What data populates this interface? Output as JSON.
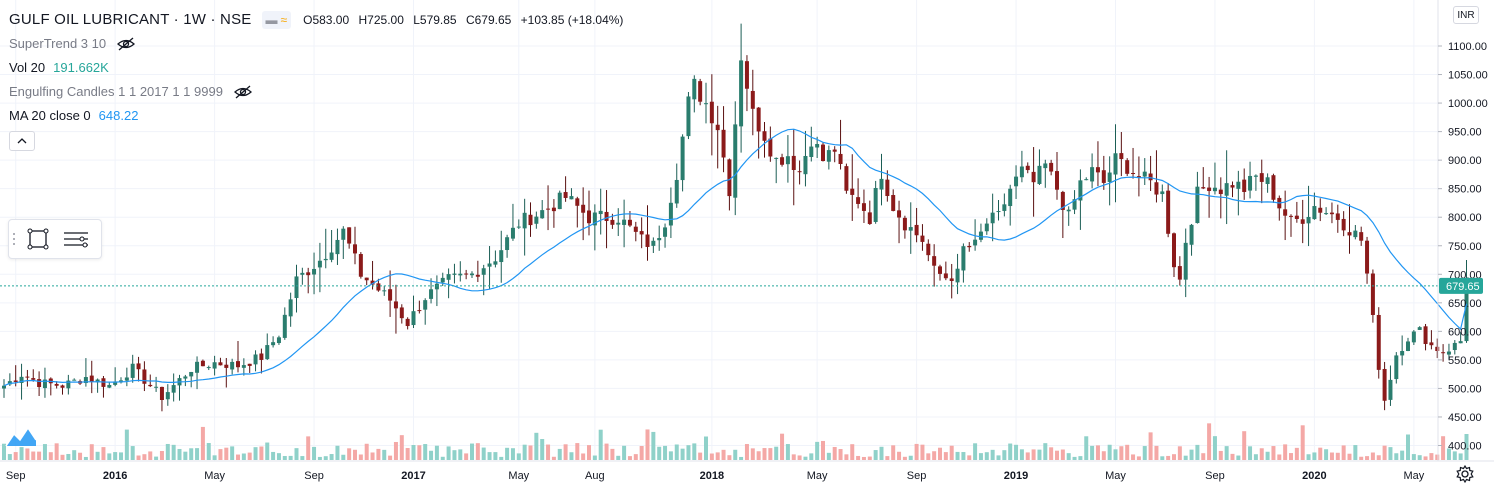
{
  "header": {
    "title": "GULF OIL LUBRICANT · 1W · NSE",
    "ohlc": {
      "open": "O583.00",
      "high": "H725.00",
      "low": "L579.85",
      "close": "C679.65",
      "change": "+103.85 (+18.04%)"
    },
    "change_color": "#26a69a"
  },
  "indicators": [
    {
      "name": "SuperTrend 3 10",
      "value": "",
      "color": "#787b86",
      "hidden": true
    },
    {
      "name": "Vol 20",
      "value": "191.662K",
      "color": "#26a69a",
      "hidden": false
    },
    {
      "name": "Engulfing Candles 1 1 2017 1 1 9999",
      "value": "",
      "color": "#787b86",
      "hidden": true
    },
    {
      "name": "MA 20 close 0",
      "value": "648.22",
      "color": "#2196f3",
      "hidden": false
    }
  ],
  "currency": "INR",
  "last_price_label": "679.65",
  "colors": {
    "up": "#26a69a",
    "down": "#ef5350",
    "candle_down_fill": "#8b1a1a",
    "candle_up_fill": "#2a7d6e",
    "ma": "#2196f3",
    "vol_up": "#8fd1c9",
    "vol_down": "#f4a8a6",
    "grid": "#f0f3fa",
    "axis_text": "#131722"
  },
  "chart_data": {
    "type": "candlestick",
    "title": "GULF OIL LUBRICANT · 1W · NSE",
    "timeframe": "1W",
    "y_ticks": [
      400,
      450,
      500,
      550,
      600,
      650,
      700,
      750,
      800,
      850,
      900,
      950,
      1000,
      1050,
      1100
    ],
    "y_tick_labels": [
      "400.00",
      "450.00",
      "500.00",
      "550.00",
      "600.00",
      "650.00",
      "700.00",
      "750.00",
      "800.00",
      "850.00",
      "900.00",
      "950.00",
      "1000.00",
      "1050.00",
      "1100.00"
    ],
    "ylim": [
      385,
      1125
    ],
    "x_labels": [
      {
        "label": "Sep",
        "bold": false,
        "index": 2
      },
      {
        "label": "2016",
        "bold": true,
        "index": 19
      },
      {
        "label": "May",
        "bold": false,
        "index": 36
      },
      {
        "label": "Sep",
        "bold": false,
        "index": 53
      },
      {
        "label": "2017",
        "bold": true,
        "index": 70
      },
      {
        "label": "May",
        "bold": false,
        "index": 88
      },
      {
        "label": "Aug",
        "bold": false,
        "index": 101
      },
      {
        "label": "2018",
        "bold": true,
        "index": 121
      },
      {
        "label": "May",
        "bold": false,
        "index": 139
      },
      {
        "label": "Sep",
        "bold": false,
        "index": 156
      },
      {
        "label": "2019",
        "bold": true,
        "index": 173
      },
      {
        "label": "May",
        "bold": false,
        "index": 190
      },
      {
        "label": "Sep",
        "bold": false,
        "index": 207
      },
      {
        "label": "2020",
        "bold": true,
        "index": 224
      },
      {
        "label": "May",
        "bold": false,
        "index": 241
      }
    ],
    "last_price": 679.65,
    "close_anchors": [
      [
        0,
        505
      ],
      [
        3,
        525
      ],
      [
        6,
        510
      ],
      [
        10,
        505
      ],
      [
        14,
        520
      ],
      [
        18,
        505
      ],
      [
        22,
        535
      ],
      [
        27,
        485
      ],
      [
        32,
        535
      ],
      [
        36,
        545
      ],
      [
        40,
        540
      ],
      [
        44,
        555
      ],
      [
        47,
        595
      ],
      [
        50,
        690
      ],
      [
        54,
        725
      ],
      [
        58,
        775
      ],
      [
        61,
        700
      ],
      [
        66,
        655
      ],
      [
        69,
        615
      ],
      [
        72,
        660
      ],
      [
        76,
        690
      ],
      [
        80,
        700
      ],
      [
        84,
        730
      ],
      [
        88,
        790
      ],
      [
        92,
        810
      ],
      [
        96,
        835
      ],
      [
        100,
        800
      ],
      [
        105,
        800
      ],
      [
        109,
        760
      ],
      [
        111,
        750
      ],
      [
        113,
        795
      ],
      [
        115,
        880
      ],
      [
        117,
        1000
      ],
      [
        118,
        1030
      ],
      [
        120,
        1000
      ],
      [
        122,
        960
      ],
      [
        124,
        850
      ],
      [
        126,
        1085
      ],
      [
        128,
        980
      ],
      [
        130,
        945
      ],
      [
        132,
        900
      ],
      [
        134,
        910
      ],
      [
        136,
        880
      ],
      [
        138,
        940
      ],
      [
        140,
        900
      ],
      [
        142,
        920
      ],
      [
        144,
        840
      ],
      [
        146,
        830
      ],
      [
        148,
        800
      ],
      [
        150,
        880
      ],
      [
        152,
        820
      ],
      [
        154,
        790
      ],
      [
        157,
        760
      ],
      [
        159,
        705
      ],
      [
        161,
        695
      ],
      [
        163,
        700
      ],
      [
        164,
        745
      ],
      [
        166,
        750
      ],
      [
        168,
        790
      ],
      [
        170,
        800
      ],
      [
        172,
        850
      ],
      [
        174,
        880
      ],
      [
        176,
        860
      ],
      [
        178,
        890
      ],
      [
        180,
        850
      ],
      [
        182,
        800
      ],
      [
        184,
        860
      ],
      [
        186,
        880
      ],
      [
        188,
        860
      ],
      [
        190,
        900
      ],
      [
        192,
        890
      ],
      [
        194,
        870
      ],
      [
        196,
        860
      ],
      [
        198,
        840
      ],
      [
        200,
        720
      ],
      [
        201,
        690
      ],
      [
        202,
        760
      ],
      [
        204,
        840
      ],
      [
        206,
        860
      ],
      [
        208,
        850
      ],
      [
        210,
        860
      ],
      [
        212,
        850
      ],
      [
        214,
        870
      ],
      [
        216,
        860
      ],
      [
        218,
        820
      ],
      [
        220,
        790
      ],
      [
        222,
        800
      ],
      [
        224,
        820
      ],
      [
        226,
        810
      ],
      [
        228,
        800
      ],
      [
        230,
        780
      ],
      [
        232,
        760
      ],
      [
        233,
        700
      ],
      [
        234,
        620
      ],
      [
        235,
        540
      ],
      [
        236,
        480
      ],
      [
        237,
        520
      ],
      [
        238,
        560
      ],
      [
        240,
        590
      ],
      [
        242,
        600
      ],
      [
        244,
        575
      ],
      [
        246,
        565
      ],
      [
        248,
        575
      ],
      [
        249,
        583
      ],
      [
        250,
        679.65
      ]
    ],
    "vol_ticks": "none",
    "series": [
      {
        "name": "MA 20 close 0",
        "last_value": 648.22
      },
      {
        "name": "Vol 20",
        "last_value": "191.662K"
      }
    ],
    "grid": true,
    "legend_position": "top-left"
  }
}
